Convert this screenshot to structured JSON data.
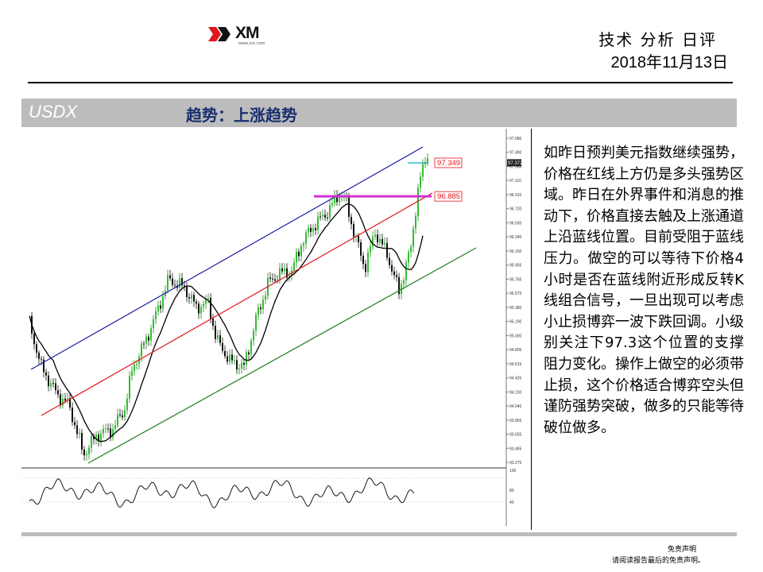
{
  "header": {
    "logo_text": "XM",
    "logo_sub": "www.xm.com",
    "report_title": "技术 分析 日评",
    "report_date": "2018年11月13日"
  },
  "section": {
    "symbol": "USDX",
    "trend": "趋势：上涨趋势"
  },
  "chart_data": {
    "type": "candlestick",
    "symbol": "USDX",
    "price_axis": {
      "ylim": [
        93.2,
        97.69
      ],
      "tick_labels": [
        "97.680",
        "97.490",
        "97.300",
        "97.110",
        "96.910",
        "96.720",
        "96.530",
        "96.340",
        "96.150",
        "95.955",
        "95.765",
        "95.575",
        "95.380",
        "95.190",
        "95.000",
        "94.805",
        "94.615",
        "94.425",
        "94.230",
        "94.040",
        "93.855",
        "93.655",
        "93.465",
        "93.275"
      ],
      "current_price": "97.372"
    },
    "key_levels": [
      {
        "label": "97.349",
        "value": 97.349,
        "color": "#e0141c",
        "line_color": "#00b0b0"
      },
      {
        "label": "96.885",
        "value": 96.885,
        "color": "#e0141c",
        "line_color": "#d030d0"
      }
    ],
    "trendlines": [
      {
        "name": "upper-channel",
        "color": "#1c1ca0"
      },
      {
        "name": "support-line",
        "color": "#e0141c"
      },
      {
        "name": "lower-channel",
        "color": "#1f7a1f"
      }
    ],
    "moving_average_color": "#000000",
    "oscillator": {
      "tick_labels": [
        "100",
        "80",
        "40"
      ],
      "ylim": [
        0,
        100
      ]
    }
  },
  "analysis_text": "如昨日预判美元指数继续强势，价格在红线上方仍是多头强势区域。昨日在外界事件和消息的推动下，价格直接去触及上涨通道上沿蓝线位置。目前受阻于蓝线压力。做空的可以等待下价格4小时是否在蓝线附近形成反转K线组合信号，一旦出现可以考虑小止损博弈一波下跌回调。小级别关注下97.3这个位置的支撑阻力变化。操作上做空的必须带止损，这个价格适合博弈空头但谨防强势突破，做多的只能等待破位做多。",
  "footer": {
    "disclaimer_title": "免责声明",
    "disclaimer_note": "请阅读报告最后的免责声明。"
  }
}
